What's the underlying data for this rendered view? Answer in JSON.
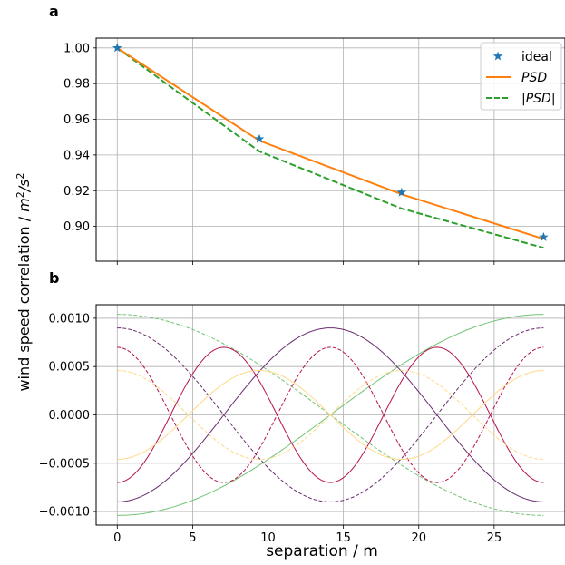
{
  "figure": {
    "ylabel": "wind speed correlation / m²/s²",
    "xlabel": "separation / m"
  },
  "colors": {
    "ideal": "#1f77b4",
    "psd": "#ff7f0e",
    "abs_psd": "#2ca02c",
    "green_mode": "#74c476",
    "purple_mode": "#6a2c70",
    "crimson_mode": "#b5124e",
    "yellow_mode": "#ffd98a",
    "grid": "#b0b0b0"
  },
  "chart_data": [
    {
      "panel": "a",
      "type": "line",
      "x": [
        0,
        9.43,
        18.86,
        28.28
      ],
      "xlim": [
        -1.4,
        29.7
      ],
      "ylim": [
        0.8805,
        1.0055
      ],
      "xticks": [
        0,
        5,
        10,
        15,
        20,
        25
      ],
      "xtick_labels_shown": false,
      "yticks": [
        0.9,
        0.92,
        0.94,
        0.96,
        0.98,
        1.0
      ],
      "ytick_labels": [
        "0.90",
        "0.92",
        "0.94",
        "0.96",
        "0.98",
        "1.00"
      ],
      "grid": true,
      "legend_position": "top-right",
      "series": [
        {
          "name": "ideal",
          "marker": "star",
          "values": [
            1.0,
            0.949,
            0.919,
            0.894
          ]
        },
        {
          "name": "PSD",
          "style": "solid",
          "values": [
            1.0,
            0.948,
            0.918,
            0.893
          ]
        },
        {
          "name": "|PSD|",
          "style": "dashed",
          "values": [
            1.0,
            0.942,
            0.91,
            0.888
          ]
        }
      ]
    },
    {
      "panel": "b",
      "type": "line",
      "xlim": [
        -1.4,
        29.7
      ],
      "ylim": [
        -0.00114,
        0.00114
      ],
      "xticks": [
        0,
        5,
        10,
        15,
        20,
        25
      ],
      "xtick_labels": [
        "0",
        "5",
        "10",
        "15",
        "20",
        "25"
      ],
      "yticks": [
        -0.001,
        -0.0005,
        0.0,
        0.0005,
        0.001
      ],
      "ytick_labels": [
        "−0.0010",
        "−0.0005",
        "0.0000",
        "0.0005",
        "0.0010"
      ],
      "grid": true,
      "x_end": 28.28,
      "series": [
        {
          "color_key": "green_mode",
          "amplitude": 0.00104,
          "half_periods": 1,
          "sign": -1,
          "style": "solid"
        },
        {
          "color_key": "green_mode",
          "amplitude": 0.00104,
          "half_periods": 1,
          "sign": 1,
          "style": "dashed"
        },
        {
          "color_key": "purple_mode",
          "amplitude": 0.0009,
          "half_periods": 2,
          "sign": -1,
          "style": "solid"
        },
        {
          "color_key": "purple_mode",
          "amplitude": 0.0009,
          "half_periods": 2,
          "sign": 1,
          "style": "dashed"
        },
        {
          "color_key": "crimson_mode",
          "amplitude": 0.0007,
          "half_periods": 4,
          "sign": -1,
          "style": "solid"
        },
        {
          "color_key": "crimson_mode",
          "amplitude": 0.0007,
          "half_periods": 4,
          "sign": 1,
          "style": "dashed"
        },
        {
          "color_key": "yellow_mode",
          "amplitude": 0.00046,
          "half_periods": 3,
          "sign": -1,
          "style": "solid"
        },
        {
          "color_key": "yellow_mode",
          "amplitude": 0.00046,
          "half_periods": 3,
          "sign": 1,
          "style": "dashed"
        }
      ]
    }
  ]
}
